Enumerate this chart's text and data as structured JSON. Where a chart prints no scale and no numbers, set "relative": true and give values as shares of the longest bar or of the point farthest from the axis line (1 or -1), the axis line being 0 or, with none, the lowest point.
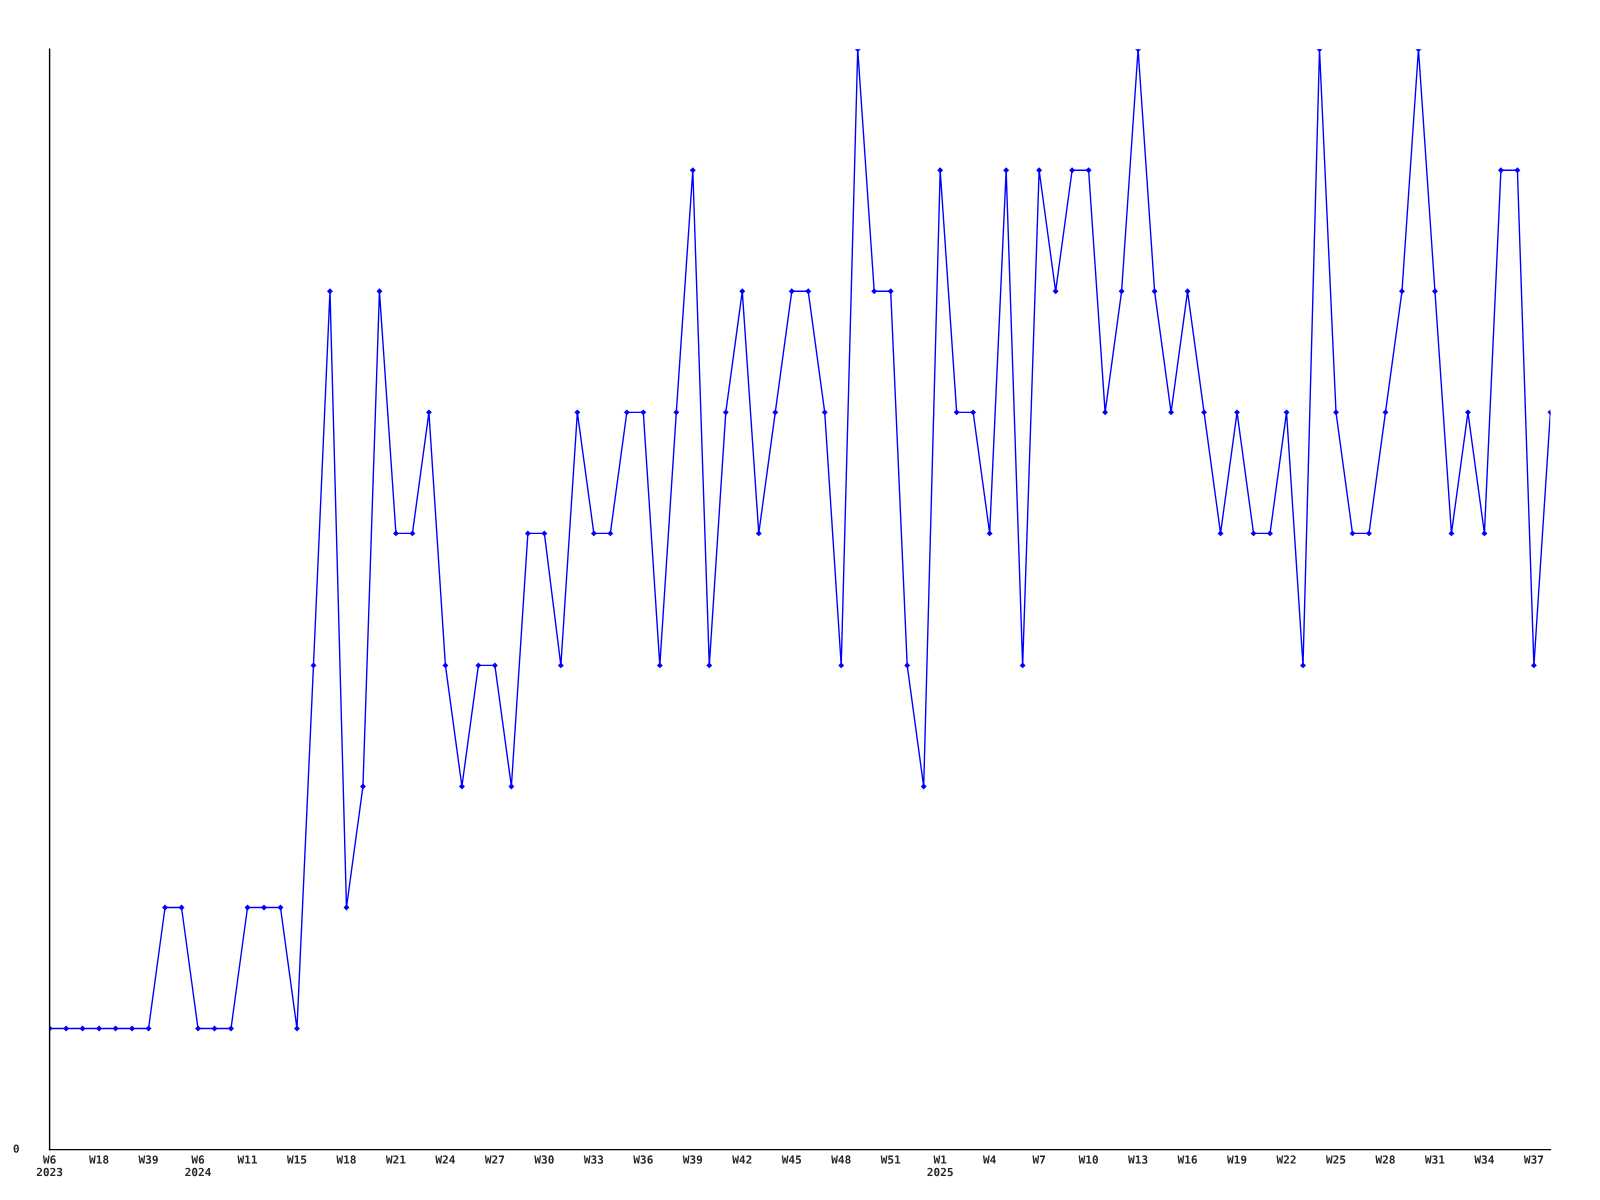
{
  "chart_data": {
    "type": "line",
    "relative": true,
    "marker": "diamond",
    "line_style": "solid",
    "grid": false,
    "legend": false,
    "annotations": [
      "0"
    ],
    "categories": [
      "W6\n2023",
      null,
      null,
      "W18",
      null,
      null,
      "W39",
      null,
      null,
      "W6\n2024",
      null,
      null,
      "W11",
      null,
      null,
      "W15",
      null,
      null,
      "W18",
      null,
      null,
      "W21",
      null,
      null,
      "W24",
      null,
      null,
      "W27",
      null,
      null,
      "W30",
      null,
      null,
      "W33",
      null,
      null,
      "W36",
      null,
      null,
      "W39",
      null,
      null,
      "W42",
      null,
      null,
      "W45",
      null,
      null,
      "W48",
      null,
      null,
      "W51",
      null,
      null,
      "W1\n2025",
      null,
      null,
      "W4",
      null,
      null,
      "W7",
      null,
      null,
      "W10",
      null,
      null,
      "W13",
      null,
      null,
      "W16",
      null,
      null,
      "W19",
      null,
      null,
      "W22",
      null,
      null,
      "W25",
      null,
      null,
      "W28",
      null,
      null,
      "W31",
      null,
      null,
      "W34",
      null,
      null,
      "W37",
      null
    ],
    "series": [
      {
        "color": "#0000ff",
        "values": [
          0.11,
          0.11,
          0.11,
          0.11,
          0.11,
          0.11,
          0.11,
          0.22,
          0.22,
          0.11,
          0.11,
          0.11,
          0.22,
          0.22,
          0.22,
          0.11,
          0.44,
          0.78,
          0.22,
          0.33,
          0.78,
          0.56,
          0.56,
          0.67,
          0.44,
          0.33,
          0.44,
          0.44,
          0.33,
          0.56,
          0.56,
          0.44,
          0.67,
          0.56,
          0.56,
          0.67,
          0.67,
          0.44,
          0.67,
          0.89,
          0.44,
          0.67,
          0.78,
          0.56,
          0.67,
          0.78,
          0.78,
          0.67,
          0.44,
          1,
          0.78,
          0.78,
          0.44,
          0.33,
          0.89,
          0.67,
          0.67,
          0.56,
          0.89,
          0.44,
          0.89,
          0.78,
          0.89,
          0.89,
          0.67,
          0.78,
          1,
          0.78,
          0.67,
          0.78,
          0.67,
          0.56,
          0.67,
          0.56,
          0.56,
          0.67,
          0.44,
          1,
          0.67,
          0.56,
          0.56,
          0.67,
          0.78,
          1,
          0.78,
          0.56,
          0.67,
          0.56,
          0.89,
          0.89,
          0.44,
          0.67
        ]
      }
    ]
  }
}
